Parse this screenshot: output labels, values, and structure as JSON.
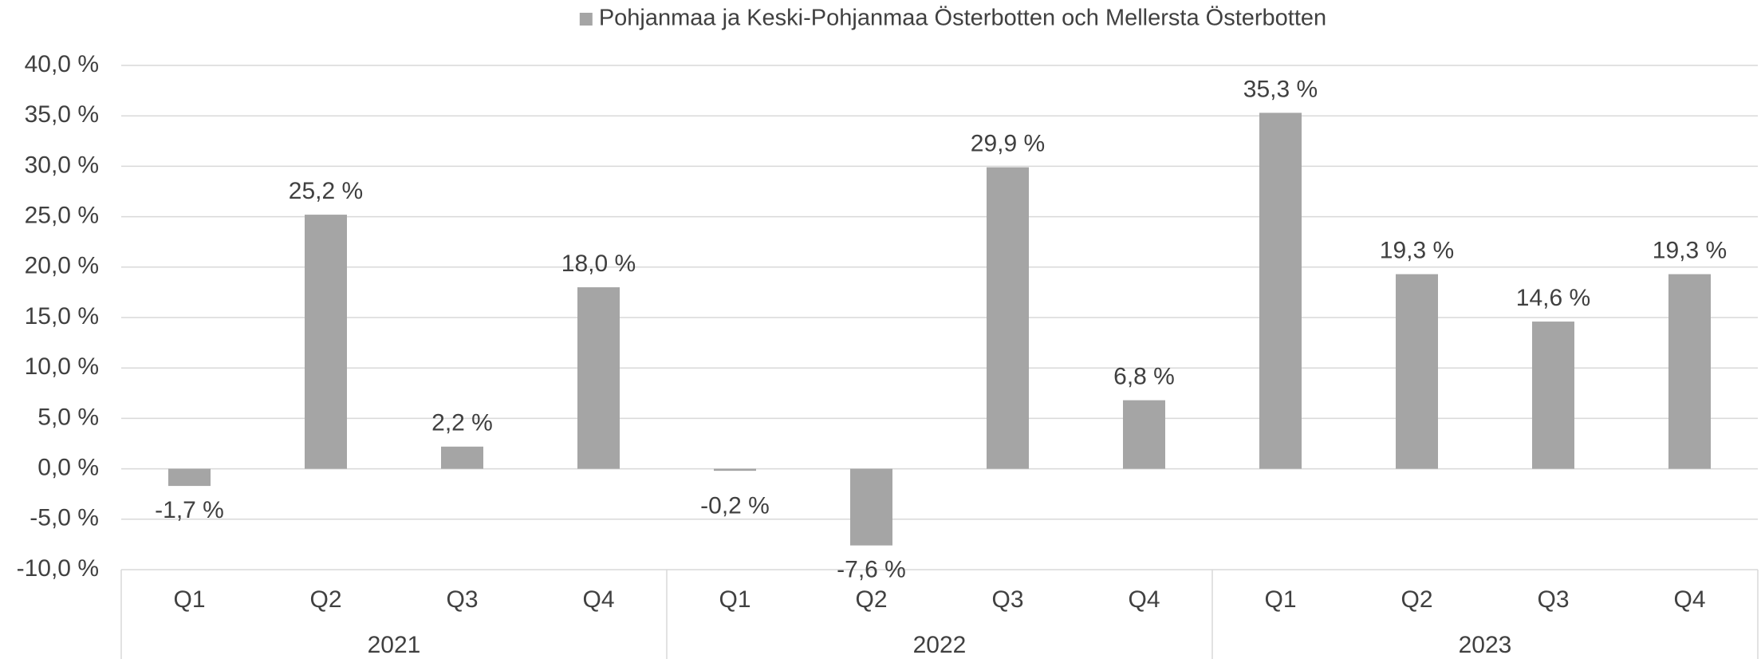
{
  "chart_data": {
    "type": "bar",
    "categories": [
      "Q1",
      "Q2",
      "Q3",
      "Q4",
      "Q1",
      "Q2",
      "Q3",
      "Q4",
      "Q1",
      "Q2",
      "Q3",
      "Q4"
    ],
    "years": [
      "2021",
      "2022",
      "2023"
    ],
    "series": [
      {
        "name": "Pohjanmaa ja Keski-Pohjanmaa Österbotten och Mellersta Österbotten",
        "color": "#a5a5a5",
        "values": [
          -1.7,
          25.2,
          2.2,
          18.0,
          -0.2,
          -7.6,
          29.9,
          6.8,
          35.3,
          19.3,
          14.6,
          19.3
        ],
        "value_labels": [
          "-1,7 %",
          "25,2 %",
          "2,2 %",
          "18,0 %",
          "-0,2 %",
          "-7,6 %",
          "29,9 %",
          "6,8 %",
          "35,3 %",
          "19,3 %",
          "14,6 %",
          "19,3 %"
        ]
      }
    ],
    "ylim": [
      -10,
      40
    ],
    "yticks": [
      {
        "value": -10,
        "label": "-10,0 %"
      },
      {
        "value": -5,
        "label": "-5,0 %"
      },
      {
        "value": 0,
        "label": "0,0 %"
      },
      {
        "value": 5,
        "label": "5,0 %"
      },
      {
        "value": 10,
        "label": "10,0 %"
      },
      {
        "value": 15,
        "label": "15,0 %"
      },
      {
        "value": 20,
        "label": "20,0 %"
      },
      {
        "value": 25,
        "label": "25,0 %"
      },
      {
        "value": 30,
        "label": "30,0 %"
      },
      {
        "value": 35,
        "label": "35,0 %"
      },
      {
        "value": 40,
        "label": "40,0 %"
      }
    ],
    "grid": true,
    "legend": "top"
  }
}
